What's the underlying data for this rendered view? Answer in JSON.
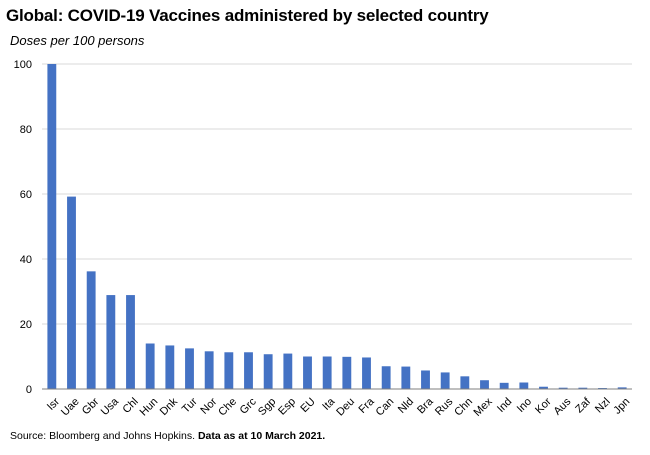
{
  "chart_data": {
    "type": "bar",
    "title": "Global: COVID-19 Vaccines administered by selected country",
    "subtitle": "Doses per 100 persons",
    "categories": [
      "Isr",
      "Uae",
      "Gbr",
      "Usa",
      "Chl",
      "Hun",
      "Dnk",
      "Tur",
      "Nor",
      "Che",
      "Grc",
      "Sgp",
      "Esp",
      "EU",
      "Ita",
      "Deu",
      "Fra",
      "Can",
      "Nld",
      "Bra",
      "Rus",
      "Chn",
      "Mex",
      "Ind",
      "Ino",
      "Kor",
      "Aus",
      "Zaf",
      "Nzl",
      "Jpn"
    ],
    "values": [
      100,
      59.2,
      36.2,
      28.9,
      28.9,
      14.0,
      13.4,
      12.5,
      11.6,
      11.3,
      11.3,
      10.7,
      10.9,
      10.0,
      10.0,
      9.9,
      9.7,
      7.0,
      6.9,
      5.7,
      5.1,
      3.9,
      2.7,
      1.9,
      2.0,
      0.7,
      0.4,
      0.4,
      0.3,
      0.5
    ],
    "xlabel": "",
    "ylabel": "",
    "ylim": [
      0,
      100
    ],
    "yticks": [
      0,
      20,
      40,
      60,
      80,
      100
    ],
    "grid": true,
    "bar_color": "#4472C4"
  },
  "footer": {
    "source_text": "Source: Bloomberg and Johns Hopkins.",
    "note_text": "Data as at 10 March 2021."
  }
}
